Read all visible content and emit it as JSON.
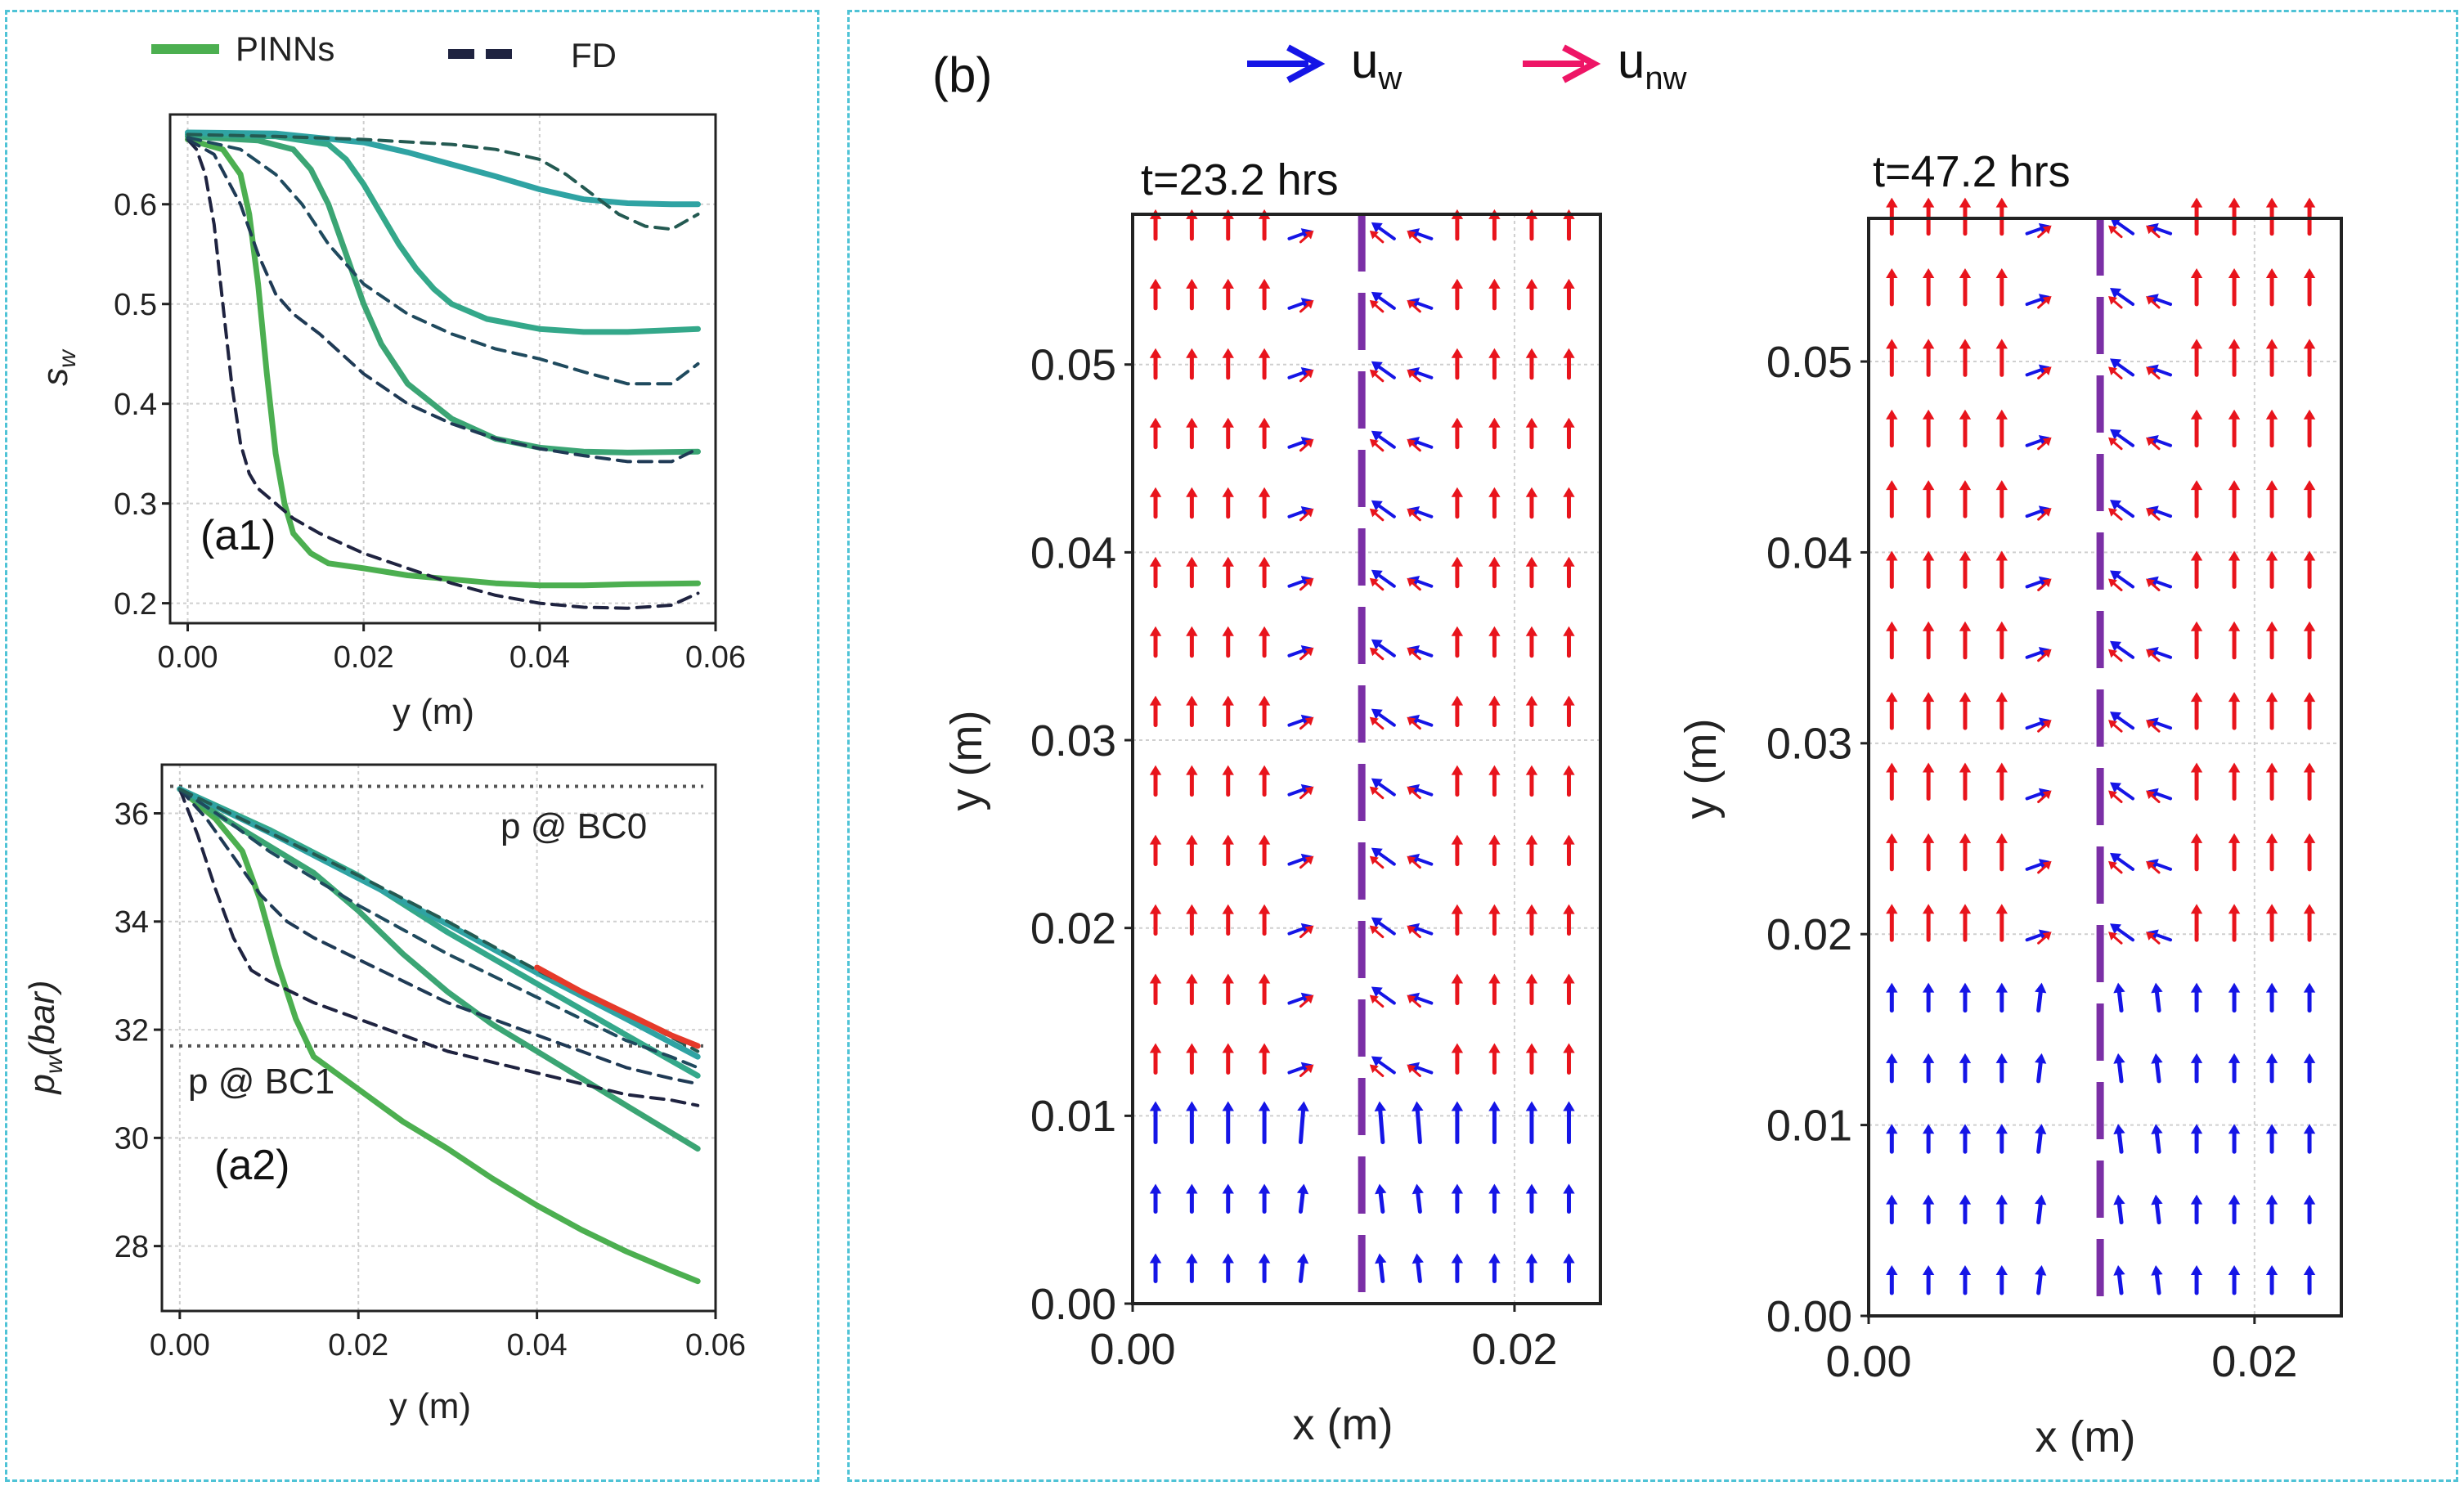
{
  "legend_left": {
    "pinn_label": "PINNs",
    "fd_label": "FD",
    "pinn_color": "#4caf50",
    "fd_color": "#1f2340"
  },
  "legend_right": {
    "uw_label": "u",
    "uw_sub": "w",
    "unw_label": "u",
    "unw_sub": "nw",
    "uw_color": "#1515e6",
    "unw_color": "#ee1566"
  },
  "chart_data": [
    {
      "id": "a1",
      "type": "line",
      "panel_label": "(a1)",
      "xlabel": "y (m)",
      "ylabel": "s",
      "ylabel_sub": "w",
      "xlim": [
        -0.002,
        0.06
      ],
      "ylim": [
        0.18,
        0.69
      ],
      "xticks": [
        0.0,
        0.02,
        0.04,
        0.06
      ],
      "xtick_labels": [
        "0.00",
        "0.02",
        "0.04",
        "0.06"
      ],
      "yticks": [
        0.2,
        0.3,
        0.4,
        0.5,
        0.6
      ],
      "ytick_labels": [
        "0.2",
        "0.3",
        "0.4",
        "0.5",
        "0.6"
      ],
      "grid": true,
      "series": [
        {
          "name": "PINNs t1",
          "style": "solid",
          "color": "#4caf50",
          "x": [
            0,
            0.004,
            0.006,
            0.007,
            0.008,
            0.009,
            0.01,
            0.011,
            0.012,
            0.014,
            0.016,
            0.02,
            0.025,
            0.03,
            0.035,
            0.04,
            0.045,
            0.05,
            0.058
          ],
          "y": [
            0.665,
            0.655,
            0.63,
            0.59,
            0.52,
            0.43,
            0.35,
            0.3,
            0.27,
            0.25,
            0.24,
            0.235,
            0.228,
            0.224,
            0.22,
            0.218,
            0.218,
            0.219,
            0.22
          ]
        },
        {
          "name": "PINNs t2",
          "style": "solid",
          "color": "#3ba574",
          "x": [
            0,
            0.008,
            0.012,
            0.014,
            0.016,
            0.018,
            0.02,
            0.022,
            0.025,
            0.03,
            0.035,
            0.04,
            0.045,
            0.05,
            0.058
          ],
          "y": [
            0.668,
            0.664,
            0.655,
            0.635,
            0.6,
            0.55,
            0.5,
            0.46,
            0.42,
            0.385,
            0.365,
            0.356,
            0.352,
            0.351,
            0.352
          ]
        },
        {
          "name": "PINNs t3",
          "style": "solid",
          "color": "#34a88a",
          "x": [
            0,
            0.01,
            0.016,
            0.018,
            0.02,
            0.022,
            0.024,
            0.026,
            0.028,
            0.03,
            0.034,
            0.04,
            0.045,
            0.05,
            0.058
          ],
          "y": [
            0.67,
            0.668,
            0.66,
            0.645,
            0.62,
            0.59,
            0.56,
            0.535,
            0.515,
            0.5,
            0.485,
            0.475,
            0.472,
            0.472,
            0.475
          ]
        },
        {
          "name": "PINNs t4",
          "style": "solid",
          "color": "#2fa3a3",
          "x": [
            0,
            0.01,
            0.02,
            0.025,
            0.03,
            0.035,
            0.04,
            0.045,
            0.05,
            0.055,
            0.058
          ],
          "y": [
            0.672,
            0.671,
            0.662,
            0.652,
            0.64,
            0.628,
            0.615,
            0.605,
            0.601,
            0.6,
            0.6
          ]
        },
        {
          "name": "FD t1",
          "style": "dashed",
          "color": "#1f2340",
          "x": [
            0,
            0.001,
            0.002,
            0.003,
            0.004,
            0.005,
            0.006,
            0.007,
            0.008,
            0.01,
            0.012,
            0.015,
            0.02,
            0.025,
            0.03,
            0.035,
            0.04,
            0.045,
            0.05,
            0.055,
            0.058
          ],
          "y": [
            0.665,
            0.655,
            0.63,
            0.58,
            0.5,
            0.42,
            0.36,
            0.33,
            0.315,
            0.3,
            0.285,
            0.27,
            0.25,
            0.235,
            0.22,
            0.208,
            0.2,
            0.196,
            0.195,
            0.198,
            0.21
          ]
        },
        {
          "name": "FD t2",
          "style": "dashed",
          "color": "#1f3a55",
          "x": [
            0,
            0.003,
            0.006,
            0.008,
            0.01,
            0.012,
            0.015,
            0.02,
            0.025,
            0.03,
            0.035,
            0.04,
            0.045,
            0.05,
            0.055,
            0.058
          ],
          "y": [
            0.665,
            0.65,
            0.6,
            0.55,
            0.51,
            0.49,
            0.47,
            0.43,
            0.4,
            0.38,
            0.365,
            0.355,
            0.348,
            0.342,
            0.342,
            0.355
          ]
        },
        {
          "name": "FD t3",
          "style": "dashed",
          "color": "#1f4a5e",
          "x": [
            0,
            0.006,
            0.01,
            0.013,
            0.016,
            0.02,
            0.025,
            0.03,
            0.035,
            0.04,
            0.045,
            0.05,
            0.055,
            0.058
          ],
          "y": [
            0.667,
            0.655,
            0.63,
            0.6,
            0.56,
            0.52,
            0.49,
            0.47,
            0.455,
            0.445,
            0.432,
            0.42,
            0.42,
            0.44
          ]
        },
        {
          "name": "FD t4",
          "style": "dashed",
          "color": "#245a52",
          "x": [
            0,
            0.01,
            0.02,
            0.03,
            0.035,
            0.04,
            0.043,
            0.046,
            0.049,
            0.052,
            0.055,
            0.058
          ],
          "y": [
            0.67,
            0.668,
            0.665,
            0.66,
            0.655,
            0.645,
            0.63,
            0.61,
            0.59,
            0.578,
            0.575,
            0.59
          ]
        }
      ]
    },
    {
      "id": "a2",
      "type": "line",
      "panel_label": "(a2)",
      "xlabel": "y (m)",
      "ylabel": "p",
      "ylabel_sub": "w",
      "ylabel_suffix": "(bar)",
      "xlim": [
        -0.002,
        0.06
      ],
      "ylim": [
        26.8,
        36.9
      ],
      "xticks": [
        0.0,
        0.02,
        0.04,
        0.06
      ],
      "xtick_labels": [
        "0.00",
        "0.02",
        "0.04",
        "0.06"
      ],
      "yticks": [
        28,
        30,
        32,
        34,
        36
      ],
      "ytick_labels": [
        "28",
        "30",
        "32",
        "34",
        "36"
      ],
      "grid": true,
      "annotations": [
        {
          "text": "p @ BC0",
          "ref_y": 36.5
        },
        {
          "text": "p @ BC1",
          "ref_y": 31.7
        }
      ],
      "series": [
        {
          "name": "PINNs t1",
          "style": "solid",
          "color": "#4caf50",
          "x": [
            0,
            0.004,
            0.007,
            0.009,
            0.011,
            0.013,
            0.015,
            0.02,
            0.025,
            0.03,
            0.035,
            0.04,
            0.045,
            0.05,
            0.055,
            0.058
          ],
          "y": [
            36.45,
            35.9,
            35.3,
            34.4,
            33.2,
            32.2,
            31.5,
            30.9,
            30.3,
            29.8,
            29.25,
            28.75,
            28.3,
            27.9,
            27.55,
            27.35
          ]
        },
        {
          "name": "PINNs t2",
          "style": "solid",
          "color": "#3ba574",
          "x": [
            0,
            0.005,
            0.01,
            0.015,
            0.02,
            0.025,
            0.03,
            0.035,
            0.04,
            0.045,
            0.05,
            0.055,
            0.058
          ],
          "y": [
            36.45,
            35.9,
            35.4,
            34.9,
            34.2,
            33.4,
            32.7,
            32.1,
            31.6,
            31.1,
            30.6,
            30.1,
            29.8
          ]
        },
        {
          "name": "PINNs t3",
          "style": "solid",
          "color": "#34a88a",
          "x": [
            0,
            0.01,
            0.02,
            0.03,
            0.04,
            0.05,
            0.058
          ],
          "y": [
            36.45,
            35.7,
            34.85,
            33.8,
            32.85,
            31.9,
            31.15
          ]
        },
        {
          "name": "PINNs t4",
          "style": "solid",
          "color": "#2fa3a3",
          "x": [
            0,
            0.01,
            0.02,
            0.03,
            0.04,
            0.05,
            0.058
          ],
          "y": [
            36.45,
            35.65,
            34.8,
            33.95,
            33.05,
            32.2,
            31.5
          ]
        },
        {
          "name": "FD t1",
          "style": "dashed",
          "color": "#1f2340",
          "x": [
            0,
            0.002,
            0.004,
            0.006,
            0.008,
            0.01,
            0.015,
            0.02,
            0.025,
            0.03,
            0.035,
            0.04,
            0.045,
            0.05,
            0.055,
            0.058
          ],
          "y": [
            36.45,
            35.6,
            34.6,
            33.7,
            33.1,
            32.9,
            32.5,
            32.2,
            31.9,
            31.6,
            31.4,
            31.2,
            31.0,
            30.8,
            30.7,
            30.6
          ]
        },
        {
          "name": "FD t2",
          "style": "dashed",
          "color": "#1f3a55",
          "x": [
            0,
            0.003,
            0.006,
            0.009,
            0.012,
            0.015,
            0.02,
            0.025,
            0.03,
            0.035,
            0.04,
            0.045,
            0.05,
            0.055,
            0.058
          ],
          "y": [
            36.45,
            35.9,
            35.2,
            34.5,
            34.0,
            33.7,
            33.3,
            32.9,
            32.5,
            32.2,
            31.9,
            31.6,
            31.3,
            31.1,
            31.0
          ]
        },
        {
          "name": "FD t3",
          "style": "dashed",
          "color": "#1f4a5e",
          "x": [
            0,
            0.005,
            0.01,
            0.015,
            0.02,
            0.025,
            0.03,
            0.035,
            0.04,
            0.045,
            0.05,
            0.055,
            0.058
          ],
          "y": [
            36.45,
            35.9,
            35.3,
            34.8,
            34.3,
            33.85,
            33.4,
            33.0,
            32.6,
            32.2,
            31.8,
            31.5,
            31.3
          ]
        },
        {
          "name": "FD t4",
          "style": "dashed",
          "color": "#245a52",
          "x": [
            0,
            0.01,
            0.02,
            0.03,
            0.04,
            0.05,
            0.058
          ],
          "y": [
            36.45,
            35.65,
            34.85,
            34.0,
            33.1,
            32.3,
            31.6
          ]
        },
        {
          "name": "boundary",
          "style": "solid",
          "color": "#e53a2a",
          "x": [
            0.04,
            0.045,
            0.05,
            0.055,
            0.058
          ],
          "y": [
            33.15,
            32.7,
            32.3,
            31.9,
            31.7
          ]
        }
      ]
    },
    {
      "id": "b1",
      "type": "quiver",
      "panel_label": "(b)",
      "title": "t=23.2 hrs",
      "xlabel": "x (m)",
      "ylabel": "y (m)",
      "xlim": [
        0.0,
        0.0245
      ],
      "ylim": [
        0.0,
        0.058
      ],
      "xticks": [
        0.0,
        0.02
      ],
      "xtick_labels": [
        "0.00",
        "0.02"
      ],
      "yticks": [
        0.0,
        0.01,
        0.02,
        0.03,
        0.04,
        0.05
      ],
      "ytick_labels": [
        "0.00",
        "0.01",
        "0.02",
        "0.03",
        "0.04",
        "0.05"
      ],
      "fracture_x": 0.012,
      "front_y": 0.011,
      "grid": true
    },
    {
      "id": "b2",
      "type": "quiver",
      "title": "t=47.2 hrs",
      "xlabel": "x (m)",
      "ylabel": "y (m)",
      "xlim": [
        0.0,
        0.0245
      ],
      "ylim": [
        0.0,
        0.0575
      ],
      "xticks": [
        0.0,
        0.02
      ],
      "xtick_labels": [
        "0.00",
        "0.02"
      ],
      "yticks": [
        0.0,
        0.01,
        0.02,
        0.03,
        0.04,
        0.05
      ],
      "ytick_labels": [
        "0.00",
        "0.01",
        "0.02",
        "0.03",
        "0.04",
        "0.05"
      ],
      "fracture_x": 0.012,
      "front_y": 0.0175,
      "grid": true
    }
  ]
}
